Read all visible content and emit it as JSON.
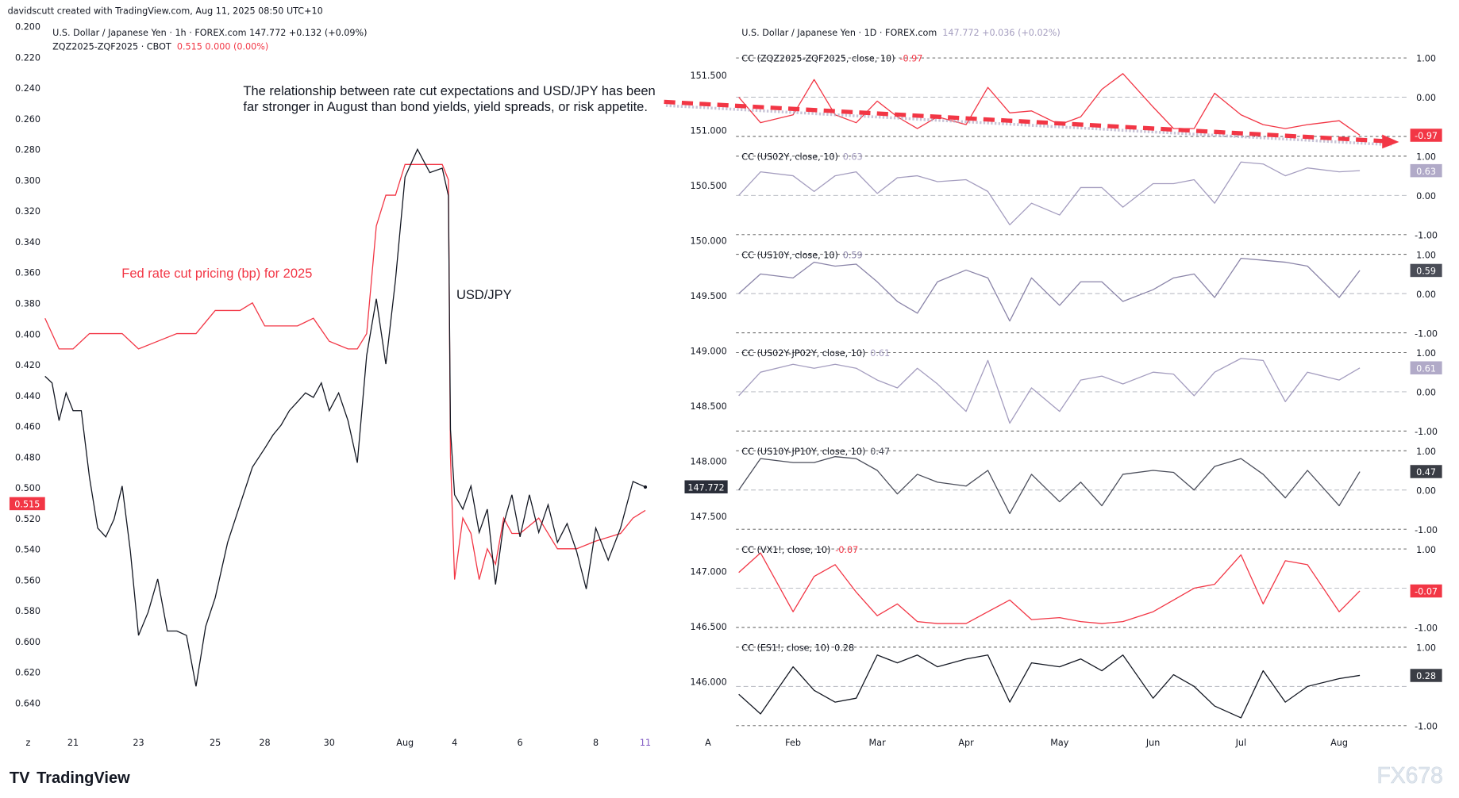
{
  "credit": "davidscutt created with TradingView.com, Aug 11, 2025 08:50 UTC+10",
  "left_legend": {
    "line1": "U.S. Dollar / Japanese Yen · 1h · FOREX.com  147.772  +0.132 (+0.09%)",
    "line2_name": "ZQZ2025-ZQF2025 · CBOT",
    "line2_values": "0.515  0.000 (0.00%)"
  },
  "right_legend": {
    "name": "U.S. Dollar / Japanese Yen · 1D · FOREX.com",
    "values": "147.772  +0.036 (+0.02%)"
  },
  "annotation": {
    "line1": "The relationship between rate cut expectations and USD/JPY has been",
    "line2": "far stronger in August than bond yields, yield spreads, or risk appetite.",
    "fed_label": "Fed rate cut pricing (bp) for 2025",
    "usdjpy_label": "USD/JPY"
  },
  "price_tags": {
    "fed_last": "0.515",
    "usdjpy_last": "147.772"
  },
  "colors": {
    "red": "#f23645",
    "black": "#131722",
    "lavender": "#a49dbf",
    "grid": "#787b86",
    "tag_dark": "#3a3d45"
  },
  "logo": {
    "text": "TradingView",
    "watermark": "FX678"
  },
  "chart_data": [
    {
      "type": "line",
      "title": "",
      "y_axis_ticks": [
        "0.200",
        "0.220",
        "0.240",
        "0.260",
        "0.280",
        "0.300",
        "0.320",
        "0.340",
        "0.360",
        "0.380",
        "0.400",
        "0.420",
        "0.440",
        "0.460",
        "0.480",
        "0.500",
        "0.520",
        "0.540",
        "0.560",
        "0.580",
        "0.600",
        "0.620",
        "0.640"
      ],
      "ylim": [
        0.2,
        0.64
      ],
      "y_inverted": true,
      "x_axis_ticks": [
        "z",
        "21",
        "23",
        "25",
        "28",
        "30",
        "Aug",
        "4",
        "6",
        "8",
        "11"
      ],
      "series": [
        {
          "name": "ZQZ2025-ZQF2025",
          "color": "#f23645",
          "axis": "left",
          "points": [
            [
              "Jul 18 00:00",
              0.39
            ],
            [
              "Jul 18 12:00",
              0.41
            ],
            [
              "Jul 21 00:00",
              0.41
            ],
            [
              "Jul 21 12:00",
              0.4
            ],
            [
              "Jul 22 00:00",
              0.4
            ],
            [
              "Jul 22 12:00",
              0.4
            ],
            [
              "Jul 23 00:00",
              0.41
            ],
            [
              "Jul 23 12:00",
              0.405
            ],
            [
              "Jul 24 00:00",
              0.4
            ],
            [
              "Jul 24 12:00",
              0.4
            ],
            [
              "Jul 25 00:00",
              0.385
            ],
            [
              "Jul 25 12:00",
              0.385
            ],
            [
              "Jul 25 18:00",
              0.38
            ],
            [
              "Jul 28 00:00",
              0.395
            ],
            [
              "Jul 28 12:00",
              0.395
            ],
            [
              "Jul 29 00:00",
              0.395
            ],
            [
              "Jul 29 12:00",
              0.39
            ],
            [
              "Jul 30 00:00",
              0.405
            ],
            [
              "Jul 30 12:00",
              0.41
            ],
            [
              "Jul 30 18:00",
              0.41
            ],
            [
              "Jul 31 00:00",
              0.4
            ],
            [
              "Jul 31 06:00",
              0.33
            ],
            [
              "Jul 31 12:00",
              0.31
            ],
            [
              "Jul 31 18:00",
              0.31
            ],
            [
              "Aug 1 00:00",
              0.29
            ],
            [
              "Aug 1 06:00",
              0.29
            ],
            [
              "Aug 1 12:00",
              0.29
            ],
            [
              "Aug 1 18:00",
              0.29
            ],
            [
              "Aug 1 21:00",
              0.3
            ],
            [
              "Aug 1 22:00",
              0.48
            ],
            [
              "Aug 4 00:00",
              0.56
            ],
            [
              "Aug 4 06:00",
              0.52
            ],
            [
              "Aug 4 12:00",
              0.53
            ],
            [
              "Aug 4 18:00",
              0.56
            ],
            [
              "Aug 5 00:00",
              0.54
            ],
            [
              "Aug 5 06:00",
              0.55
            ],
            [
              "Aug 5 12:00",
              0.52
            ],
            [
              "Aug 5 18:00",
              0.53
            ],
            [
              "Aug 6 00:00",
              0.53
            ],
            [
              "Aug 6 12:00",
              0.52
            ],
            [
              "Aug 7 00:00",
              0.54
            ],
            [
              "Aug 7 12:00",
              0.54
            ],
            [
              "Aug 8 00:00",
              0.535
            ],
            [
              "Aug 8 12:00",
              0.53
            ],
            [
              "Aug 8 18:00",
              0.52
            ],
            [
              "Aug 11 00:00",
              0.515
            ]
          ]
        },
        {
          "name": "U.S. Dollar / Japanese Yen",
          "color": "#131722",
          "axis": "overlay",
          "last": 147.772,
          "points": [
            [
              "Jul 18 00:00",
              148.77
            ],
            [
              "Jul 18 06:00",
              148.71
            ],
            [
              "Jul 18 12:00",
              148.37
            ],
            [
              "Jul 18 18:00",
              148.62
            ],
            [
              "Jul 21 00:00",
              148.46
            ],
            [
              "Jul 21 06:00",
              148.46
            ],
            [
              "Jul 21 12:00",
              147.86
            ],
            [
              "Jul 21 18:00",
              147.4
            ],
            [
              "Jul 22 00:00",
              147.32
            ],
            [
              "Jul 22 06:00",
              147.48
            ],
            [
              "Jul 22 12:00",
              147.78
            ],
            [
              "Jul 22 18:00",
              147.19
            ],
            [
              "Jul 23 00:00",
              146.43
            ],
            [
              "Jul 23 06:00",
              146.64
            ],
            [
              "Jul 23 12:00",
              146.94
            ],
            [
              "Jul 23 18:00",
              146.47
            ],
            [
              "Jul 24 00:00",
              146.47
            ],
            [
              "Jul 24 06:00",
              146.43
            ],
            [
              "Jul 24 12:00",
              145.97
            ],
            [
              "Jul 24 18:00",
              146.51
            ],
            [
              "Jul 25 00:00",
              146.77
            ],
            [
              "Jul 25 06:00",
              147.27
            ],
            [
              "Jul 25 12:00",
              147.61
            ],
            [
              "Jul 25 18:00",
              147.95
            ],
            [
              "Jul 28 00:00",
              148.12
            ],
            [
              "Jul 28 06:00",
              148.24
            ],
            [
              "Jul 28 12:00",
              148.33
            ],
            [
              "Jul 28 18:00",
              148.46
            ],
            [
              "Jul 29 00:00",
              148.54
            ],
            [
              "Jul 29 06:00",
              148.62
            ],
            [
              "Jul 29 12:00",
              148.58
            ],
            [
              "Jul 29 18:00",
              148.71
            ],
            [
              "Jul 30 00:00",
              148.46
            ],
            [
              "Jul 30 06:00",
              148.62
            ],
            [
              "Jul 30 12:00",
              148.37
            ],
            [
              "Jul 30 18:00",
              147.99
            ],
            [
              "Jul 31 00:00",
              148.96
            ],
            [
              "Jul 31 06:00",
              149.47
            ],
            [
              "Jul 31 12:00",
              148.88
            ],
            [
              "Jul 31 18:00",
              149.64
            ],
            [
              "Aug 1 00:00",
              150.57
            ],
            [
              "Aug 1 06:00",
              150.82
            ],
            [
              "Aug 1 12:00",
              150.61
            ],
            [
              "Aug 1 18:00",
              150.65
            ],
            [
              "Aug 1 21:00",
              150.4
            ],
            [
              "Aug 1 22:00",
              148.29
            ],
            [
              "Aug 4 00:00",
              147.7
            ],
            [
              "Aug 4 06:00",
              147.57
            ],
            [
              "Aug 4 12:00",
              147.78
            ],
            [
              "Aug 4 18:00",
              147.36
            ],
            [
              "Aug 5 00:00",
              147.57
            ],
            [
              "Aug 5 06:00",
              146.89
            ],
            [
              "Aug 5 12:00",
              147.44
            ],
            [
              "Aug 5 18:00",
              147.7
            ],
            [
              "Aug 6 00:00",
              147.32
            ],
            [
              "Aug 6 06:00",
              147.7
            ],
            [
              "Aug 6 12:00",
              147.36
            ],
            [
              "Aug 6 18:00",
              147.61
            ],
            [
              "Aug 7 00:00",
              147.27
            ],
            [
              "Aug 7 06:00",
              147.44
            ],
            [
              "Aug 7 12:00",
              147.19
            ],
            [
              "Aug 7 18:00",
              146.85
            ],
            [
              "Aug 8 00:00",
              147.4
            ],
            [
              "Aug 8 06:00",
              147.11
            ],
            [
              "Aug 8 12:00",
              147.4
            ],
            [
              "Aug 8 18:00",
              147.82
            ],
            [
              "Aug 11 00:00",
              147.77
            ]
          ]
        }
      ]
    },
    {
      "type": "line",
      "title": "",
      "price_axis_ticks": [
        "151.500",
        "151.000",
        "150.500",
        "150.000",
        "149.500",
        "149.000",
        "148.500",
        "148.000",
        "147.500",
        "147.000",
        "146.500",
        "146.000"
      ],
      "x_axis_ticks": [
        "A",
        "Feb",
        "Mar",
        "Apr",
        "May",
        "Jun",
        "Jul",
        "Aug"
      ],
      "panel_axis_ticks": [
        "1.00",
        "0.00",
        "-1.00"
      ],
      "dates": [
        "Jan 12",
        "Jan 20",
        "Feb 1",
        "Feb 8",
        "Feb 15",
        "Feb 22",
        "Mar 1",
        "Mar 8",
        "Mar 15",
        "Mar 22",
        "Apr 1",
        "Apr 8",
        "Apr 15",
        "Apr 22",
        "May 1",
        "May 8",
        "May 15",
        "May 22",
        "Jun 1",
        "Jun 8",
        "Jun 15",
        "Jun 22",
        "Jul 1",
        "Jul 8",
        "Jul 15",
        "Jul 22",
        "Aug 1",
        "Aug 8"
      ],
      "panels": [
        {
          "label": "CC (ZQZ2025-ZQF2025, close, 10)",
          "last": "-0.97",
          "color": "#f23645",
          "tag_bg": "#f23645",
          "ylim": [
            -1,
            1
          ],
          "values": [
            0.0,
            -0.65,
            -0.45,
            0.45,
            -0.45,
            -0.65,
            -0.1,
            -0.5,
            -0.8,
            -0.5,
            -0.7,
            0.25,
            -0.4,
            -0.35,
            -0.7,
            -0.5,
            0.2,
            0.6,
            -0.25,
            -0.8,
            -0.8,
            0.1,
            -0.45,
            -0.7,
            -0.8,
            -0.7,
            -0.6,
            -0.97
          ]
        },
        {
          "label": "CC (US02Y, close, 10)",
          "last": "0.63",
          "color": "#a49dbf",
          "tag_bg": "#b1aac8",
          "ylim": [
            -1,
            1
          ],
          "values": [
            0.0,
            0.6,
            0.5,
            0.1,
            0.5,
            0.6,
            0.05,
            0.45,
            0.5,
            0.35,
            0.4,
            0.1,
            -0.75,
            -0.2,
            -0.5,
            0.2,
            0.2,
            -0.3,
            0.3,
            0.3,
            0.4,
            -0.2,
            0.85,
            0.8,
            0.5,
            0.7,
            0.6,
            0.63
          ]
        },
        {
          "label": "CC (US10Y, close, 10)",
          "last": "0.59",
          "color": "#8a84a8",
          "tag_bg": "#4a4d57",
          "ylim": [
            -1,
            1
          ],
          "values": [
            0.0,
            0.5,
            0.4,
            0.8,
            0.7,
            0.75,
            0.3,
            -0.2,
            -0.5,
            0.3,
            0.6,
            0.4,
            -0.7,
            0.4,
            -0.3,
            0.3,
            0.3,
            -0.2,
            0.1,
            0.4,
            0.5,
            -0.1,
            0.9,
            0.85,
            0.8,
            0.7,
            -0.1,
            0.59
          ]
        },
        {
          "label": "CC (US02Y-JP02Y, close, 10)",
          "last": "0.61",
          "color": "#a49dbf",
          "tag_bg": "#b1aac8",
          "ylim": [
            -1,
            1
          ],
          "values": [
            -0.1,
            0.5,
            0.7,
            0.6,
            0.7,
            0.6,
            0.3,
            0.1,
            0.6,
            0.2,
            -0.5,
            0.8,
            -0.8,
            0.1,
            -0.5,
            0.3,
            0.4,
            0.2,
            0.5,
            0.45,
            -0.1,
            0.5,
            0.85,
            0.8,
            -0.25,
            0.5,
            0.3,
            0.61
          ]
        },
        {
          "label": "CC (US10Y-JP10Y, close, 10)",
          "last": "0.47",
          "color": "#4a4d5a",
          "tag_bg": "#3a3d45",
          "ylim": [
            -1,
            1
          ],
          "values": [
            0.0,
            0.8,
            0.7,
            0.7,
            0.85,
            0.8,
            0.5,
            -0.1,
            0.4,
            0.2,
            0.1,
            0.5,
            -0.6,
            0.4,
            -0.3,
            0.2,
            -0.4,
            0.4,
            0.5,
            0.45,
            0.0,
            0.6,
            0.8,
            0.4,
            -0.2,
            0.5,
            -0.4,
            0.47
          ]
        },
        {
          "label": "CC (VX1!, close, 10)",
          "last": "-0.07",
          "color": "#f23645",
          "tag_bg": "#f23645",
          "ylim": [
            -1,
            1
          ],
          "values": [
            0.4,
            0.9,
            -0.6,
            0.3,
            0.6,
            -0.1,
            -0.7,
            -0.4,
            -0.85,
            -0.9,
            -0.9,
            -0.6,
            -0.3,
            -0.8,
            -0.75,
            -0.85,
            -0.9,
            -0.85,
            -0.6,
            -0.3,
            0.0,
            0.1,
            0.85,
            -0.4,
            0.7,
            0.6,
            -0.6,
            -0.07
          ]
        },
        {
          "label": "CC (ES1!, close, 10)",
          "last": "0.28",
          "color": "#131722",
          "tag_bg": "#3a3d45",
          "ylim": [
            -1,
            1
          ],
          "values": [
            -0.2,
            -0.7,
            0.5,
            -0.1,
            -0.4,
            -0.3,
            0.8,
            0.6,
            0.8,
            0.5,
            0.7,
            0.8,
            -0.4,
            0.6,
            0.5,
            0.7,
            0.4,
            0.8,
            -0.3,
            0.3,
            0.0,
            -0.5,
            -0.8,
            0.4,
            -0.4,
            0.0,
            0.2,
            0.28
          ]
        }
      ]
    }
  ]
}
